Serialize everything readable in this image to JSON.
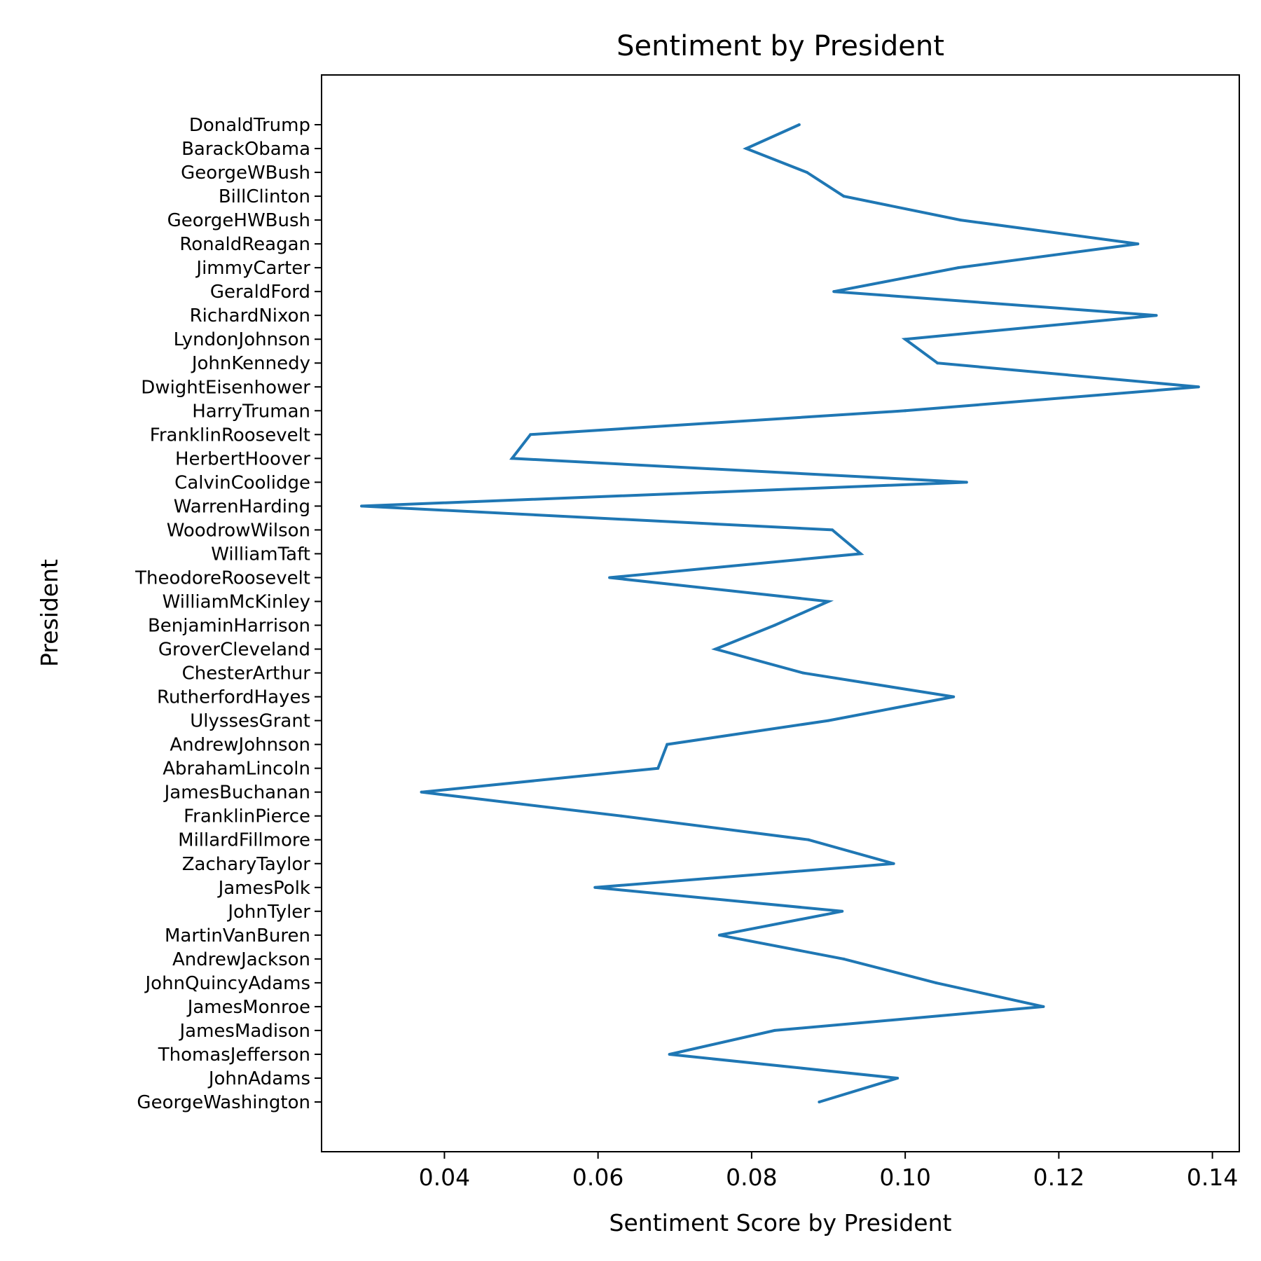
{
  "chart_data": {
    "type": "line",
    "title": "Sentiment by President",
    "xlabel": "Sentiment Score by President",
    "ylabel": "President",
    "xlim": [
      0.024,
      0.1435
    ],
    "xticks": [
      0.04,
      0.06,
      0.08,
      0.1,
      0.12,
      0.14
    ],
    "xtick_labels": [
      "0.04",
      "0.06",
      "0.08",
      "0.10",
      "0.12",
      "0.14"
    ],
    "grid": false,
    "series_color": "#1f77b4",
    "categories": [
      "GeorgeWashington",
      "JohnAdams",
      "ThomasJefferson",
      "JamesMadison",
      "JamesMonroe",
      "JohnQuincyAdams",
      "AndrewJackson",
      "MartinVanBuren",
      "JohnTyler",
      "JamesPolk",
      "ZacharyTaylor",
      "MillardFillmore",
      "FranklinPierce",
      "JamesBuchanan",
      "AbrahamLincoln",
      "AndrewJohnson",
      "UlyssesGrant",
      "RutherfordHayes",
      "ChesterArthur",
      "GroverCleveland",
      "BenjaminHarrison",
      "WilliamMcKinley",
      "TheodoreRoosevelt",
      "WilliamTaft",
      "WoodrowWilson",
      "WarrenHarding",
      "CalvinCoolidge",
      "HerbertHoover",
      "FranklinRoosevelt",
      "HarryTruman",
      "DwightEisenhower",
      "JohnKennedy",
      "LyndonJohnson",
      "RichardNixon",
      "GeraldFord",
      "JimmyCarter",
      "RonaldReagan",
      "GeorgeHWBush",
      "BillClinton",
      "GeorgeWBush",
      "BarackObama",
      "DonaldTrump"
    ],
    "values": [
      0.0888,
      0.099,
      0.0693,
      0.083,
      0.118,
      0.104,
      0.092,
      0.0758,
      0.0918,
      0.0596,
      0.0985,
      0.0874,
      0.063,
      0.037,
      0.0678,
      0.069,
      0.09,
      0.1063,
      0.0867,
      0.0753,
      0.083,
      0.09,
      0.0615,
      0.0942,
      0.0905,
      0.0292,
      0.108,
      0.0488,
      0.0512,
      0.1,
      0.1382,
      0.1042,
      0.1,
      0.1327,
      0.0907,
      0.1069,
      0.1303,
      0.1072,
      0.092,
      0.0872,
      0.0793,
      0.0862
    ]
  }
}
